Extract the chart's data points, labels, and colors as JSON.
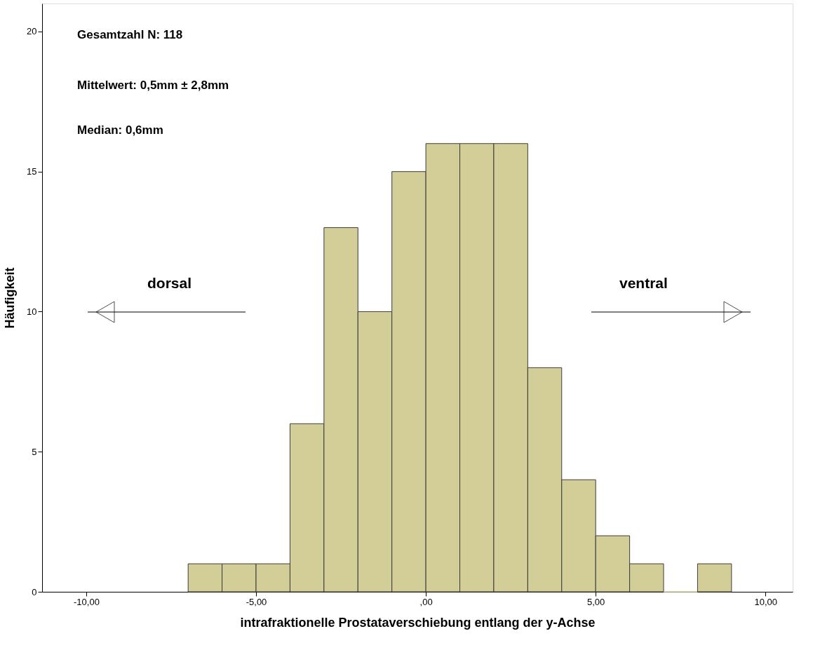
{
  "chart_data": {
    "type": "histogram",
    "xlabel": "intrafraktionelle Prostataverschiebung entlang der y-Achse",
    "ylabel": "Häufigkeit",
    "bins": [
      -7,
      -6,
      -5,
      -4,
      -3,
      -2,
      -1,
      0,
      1,
      2,
      3,
      4,
      5,
      6,
      7,
      8,
      9
    ],
    "values": [
      1,
      1,
      1,
      6,
      13,
      10,
      15,
      16,
      16,
      16,
      8,
      4,
      2,
      1,
      0,
      1
    ],
    "color": "#d3ce97",
    "xlim": [
      -11.3,
      10.8
    ],
    "xticks": [
      {
        "value": -10,
        "label": "-10,00"
      },
      {
        "value": -5,
        "label": "-5,00"
      },
      {
        "value": 0,
        "label": ",00"
      },
      {
        "value": 5,
        "label": "5,00"
      },
      {
        "value": 10,
        "label": "10,00"
      }
    ],
    "ylim": [
      0,
      21
    ],
    "yticks": [
      0,
      5,
      10,
      15,
      20
    ],
    "grid": false,
    "annotations": [
      "Gesamtzahl N: 118",
      "Mittelwert: 0,5mm ± 2,8mm",
      "Median:     0,6mm",
      "dorsal",
      "ventral"
    ]
  }
}
